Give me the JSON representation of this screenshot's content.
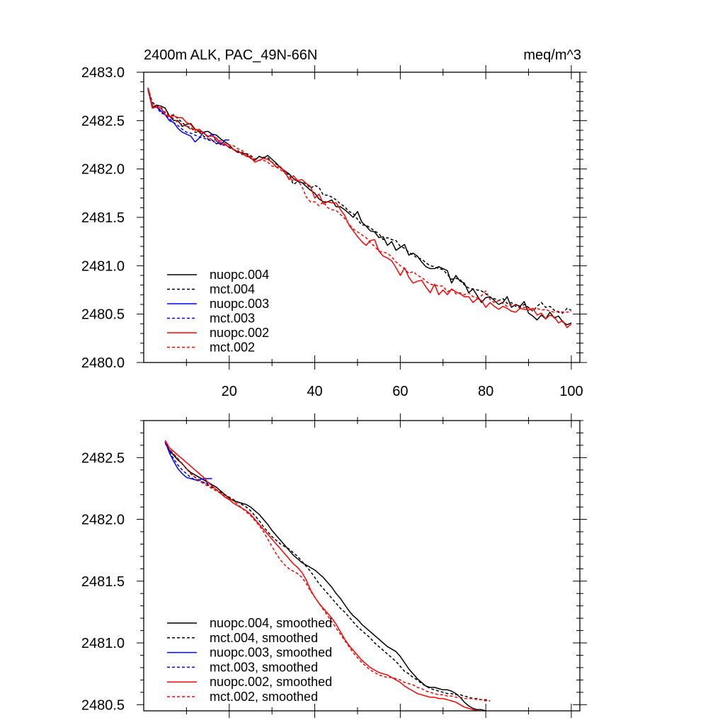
{
  "chart_data": [
    {
      "type": "line",
      "title": "2400m ALK, PAC_49N-66N",
      "units": "meq/m^3",
      "xlim": [
        0,
        102
      ],
      "ylim": [
        2480.0,
        2483.0
      ],
      "xticks": [
        20,
        40,
        60,
        80,
        100
      ],
      "yticks": [
        2480.0,
        2480.5,
        2481.0,
        2481.5,
        2482.0,
        2482.5,
        2483.0
      ],
      "ytick_labels": [
        "2480.0",
        "2480.5",
        "2481.0",
        "2481.5",
        "2482.0",
        "2482.5",
        "2483.0"
      ],
      "xtick_labels": [
        "20",
        "40",
        "60",
        "80",
        "100"
      ],
      "legend_position": "bottom-left",
      "series": [
        {
          "name": "nuopc.004",
          "color": "#000000",
          "dash": "solid",
          "x_start": 1,
          "values": [
            2482.84,
            2482.64,
            2482.66,
            2482.65,
            2482.63,
            2482.55,
            2482.5,
            2482.5,
            2482.44,
            2482.46,
            2482.47,
            2482.41,
            2482.39,
            2482.38,
            2482.39,
            2482.36,
            2482.35,
            2482.31,
            2482.28,
            2482.25,
            2482.2,
            2482.17,
            2482.17,
            2482.15,
            2482.11,
            2482.09,
            2482.13,
            2482.11,
            2482.14,
            2482.1,
            2482.06,
            2482.01,
            2481.98,
            2481.95,
            2481.9,
            2481.87,
            2481.86,
            2481.82,
            2481.78,
            2481.75,
            2481.69,
            2481.66,
            2481.66,
            2481.68,
            2481.61,
            2481.61,
            2481.58,
            2481.54,
            2481.5,
            2481.56,
            2481.45,
            2481.41,
            2481.36,
            2481.35,
            2481.29,
            2481.3,
            2481.21,
            2481.25,
            2481.16,
            2481.19,
            2481.22,
            2481.11,
            2481.13,
            2481.1,
            2481.04,
            2480.99,
            2480.97,
            2480.97,
            2480.99,
            2480.97,
            2480.95,
            2480.82,
            2480.9,
            2480.84,
            2480.82,
            2480.72,
            2480.76,
            2480.69,
            2480.62,
            2480.67,
            2480.68,
            2480.64,
            2480.6,
            2480.62,
            2480.68,
            2480.57,
            2480.6,
            2480.58,
            2480.63,
            2480.51,
            2480.48,
            2480.44,
            2480.49,
            2480.45,
            2480.52,
            2480.46,
            2480.48,
            2480.42,
            2480.39,
            2480.41
          ]
        },
        {
          "name": "mct.004",
          "color": "#000000",
          "dash": "dashed",
          "x_start": 1,
          "values": [
            2482.84,
            2482.69,
            2482.66,
            2482.6,
            2482.59,
            2482.55,
            2482.56,
            2482.52,
            2482.48,
            2482.44,
            2482.43,
            2482.38,
            2482.38,
            2482.34,
            2482.31,
            2482.3,
            2482.26,
            2482.27,
            2482.26,
            2482.22,
            2482.2,
            2482.19,
            2482.15,
            2482.16,
            2482.14,
            2482.1,
            2482.13,
            2482.12,
            2482.12,
            2482.07,
            2482.05,
            2482.02,
            2481.96,
            2481.94,
            2481.84,
            2481.87,
            2481.86,
            2481.85,
            2481.8,
            2481.83,
            2481.81,
            2481.73,
            2481.73,
            2481.71,
            2481.68,
            2481.64,
            2481.61,
            2481.56,
            2481.54,
            2481.48,
            2481.42,
            2481.42,
            2481.39,
            2481.36,
            2481.33,
            2481.27,
            2481.29,
            2481.27,
            2481.26,
            2481.2,
            2481.18,
            2481.14,
            2481.11,
            2481.08,
            2481.07,
            2481.03,
            2481.0,
            2480.99,
            2480.97,
            2480.96,
            2480.91,
            2480.86,
            2480.87,
            2480.86,
            2480.8,
            2480.77,
            2480.76,
            2480.75,
            2480.74,
            2480.71,
            2480.67,
            2480.66,
            2480.64,
            2480.66,
            2480.61,
            2480.62,
            2480.58,
            2480.57,
            2480.6,
            2480.57,
            2480.53,
            2480.58,
            2480.62,
            2480.57,
            2480.58,
            2480.54,
            2480.52,
            2480.51,
            2480.56,
            2480.54
          ]
        },
        {
          "name": "nuopc.003",
          "color": "#0000ff",
          "dash": "solid",
          "x_start": 1,
          "values": [
            2482.82,
            2482.63,
            2482.64,
            2482.6,
            2482.56,
            2482.5,
            2482.48,
            2482.42,
            2482.38,
            2482.36,
            2482.34,
            2482.28,
            2482.32,
            2482.38,
            2482.33,
            2482.36,
            2482.29,
            2482.25,
            2482.3,
            2482.3
          ]
        },
        {
          "name": "mct.003",
          "color": "#0000ff",
          "dash": "dashed",
          "x_start": 1,
          "values": [
            2482.83,
            2482.66,
            2482.64,
            2482.58,
            2482.56,
            2482.52,
            2482.48,
            2482.45,
            2482.41,
            2482.38,
            2482.37,
            2482.35,
            2482.33,
            2482.32,
            2482.3,
            2482.29,
            2482.27,
            2482.26,
            2482.24,
            2482.23
          ]
        },
        {
          "name": "nuopc.002",
          "color": "#ff0000",
          "dash": "solid",
          "x_start": 1,
          "values": [
            2482.84,
            2482.63,
            2482.64,
            2482.63,
            2482.56,
            2482.54,
            2482.55,
            2482.53,
            2482.53,
            2482.48,
            2482.46,
            2482.4,
            2482.41,
            2482.37,
            2482.34,
            2482.34,
            2482.32,
            2482.26,
            2482.25,
            2482.23,
            2482.2,
            2482.18,
            2482.16,
            2482.13,
            2482.12,
            2482.07,
            2482.09,
            2482.11,
            2482.1,
            2482.07,
            2482.02,
            2482.02,
            2481.97,
            2481.89,
            2481.93,
            2481.88,
            2481.89,
            2481.85,
            2481.82,
            2481.7,
            2481.74,
            2481.64,
            2481.66,
            2481.65,
            2481.65,
            2481.58,
            2481.52,
            2481.42,
            2481.36,
            2481.3,
            2481.25,
            2481.21,
            2481.26,
            2481.27,
            2481.15,
            2481.1,
            2481.08,
            2481.05,
            2480.98,
            2480.9,
            2480.98,
            2480.88,
            2480.82,
            2480.84,
            2480.85,
            2480.78,
            2480.72,
            2480.81,
            2480.7,
            2480.75,
            2480.7,
            2480.76,
            2480.73,
            2480.71,
            2480.68,
            2480.68,
            2480.62,
            2480.66,
            2480.64,
            2480.57,
            2480.62,
            2480.58,
            2480.55,
            2480.58,
            2480.56,
            2480.53,
            2480.52,
            2480.56,
            2480.55,
            2480.54,
            2480.56,
            2480.49,
            2480.51,
            2480.45,
            2480.49,
            2480.47,
            2480.41,
            2480.43,
            2480.36,
            2480.4
          ]
        },
        {
          "name": "mct.002",
          "color": "#ff0000",
          "dash": "dashed",
          "x_start": 1,
          "values": [
            2482.83,
            2482.68,
            2482.65,
            2482.64,
            2482.58,
            2482.55,
            2482.52,
            2482.48,
            2482.46,
            2482.44,
            2482.41,
            2482.41,
            2482.38,
            2482.37,
            2482.33,
            2482.3,
            2482.3,
            2482.29,
            2482.26,
            2482.25,
            2482.24,
            2482.21,
            2482.19,
            2482.15,
            2482.13,
            2482.1,
            2482.09,
            2482.09,
            2482.07,
            2482.03,
            2482.02,
            2481.99,
            2481.96,
            2481.9,
            2481.88,
            2481.88,
            2481.82,
            2481.71,
            2481.66,
            2481.66,
            2481.62,
            2481.66,
            2481.6,
            2481.58,
            2481.57,
            2481.53,
            2481.49,
            2481.43,
            2481.38,
            2481.35,
            2481.32,
            2481.29,
            2481.24,
            2481.2,
            2481.15,
            2481.14,
            2481.13,
            2481.09,
            2481.04,
            2481.0,
            2480.97,
            2480.92,
            2480.94,
            2480.9,
            2480.88,
            2480.84,
            2480.81,
            2480.8,
            2480.79,
            2480.79,
            2480.73,
            2480.76,
            2480.71,
            2480.72,
            2480.7,
            2480.72,
            2480.68,
            2480.67,
            2480.69,
            2480.74,
            2480.65,
            2480.62,
            2480.64,
            2480.61,
            2480.58,
            2480.6,
            2480.59,
            2480.56,
            2480.57,
            2480.56,
            2480.55,
            2480.56,
            2480.54,
            2480.55,
            2480.53,
            2480.52,
            2480.53,
            2480.52,
            2480.52,
            2480.53
          ]
        }
      ]
    },
    {
      "type": "line",
      "title": "",
      "xlim": [
        0,
        102
      ],
      "ylim": [
        2480.45,
        2482.8
      ],
      "yticks": [
        2480.5,
        2481.0,
        2481.5,
        2482.0,
        2482.5
      ],
      "ytick_labels": [
        "2480.5",
        "2481.0",
        "2481.5",
        "2482.0",
        "2482.5"
      ],
      "xticks": [
        20,
        40,
        60,
        80,
        100
      ],
      "legend_position": "bottom-left",
      "series": [
        {
          "name": "nuopc.004, smoothed",
          "color": "#000000",
          "dash": "solid",
          "x_start": 5,
          "values": [
            2482.63,
            2482.56,
            2482.52,
            2482.48,
            2482.45,
            2482.41,
            2482.38,
            2482.36,
            2482.34,
            2482.32,
            2482.3,
            2482.28,
            2482.26,
            2482.23,
            2482.2,
            2482.17,
            2482.15,
            2482.14,
            2482.13,
            2482.12,
            2482.1,
            2482.07,
            2482.04,
            2482.0,
            2481.96,
            2481.91,
            2481.87,
            2481.83,
            2481.79,
            2481.75,
            2481.71,
            2481.68,
            2481.65,
            2481.63,
            2481.61,
            2481.59,
            2481.56,
            2481.53,
            2481.49,
            2481.45,
            2481.4,
            2481.36,
            2481.31,
            2481.26,
            2481.22,
            2481.19,
            2481.15,
            2481.12,
            2481.09,
            2481.06,
            2481.03,
            2481.0,
            2480.97,
            2480.95,
            2480.93,
            2480.89,
            2480.84,
            2480.79,
            2480.75,
            2480.71,
            2480.68,
            2480.65,
            2480.64,
            2480.64,
            2480.63,
            2480.62,
            2480.62,
            2480.61,
            2480.59,
            2480.56,
            2480.52,
            2480.49,
            2480.47,
            2480.46,
            2480.46,
            2480.45,
            2480.44
          ]
        },
        {
          "name": "mct.004, smoothed",
          "color": "#000000",
          "dash": "dashed",
          "x_start": 5,
          "values": [
            2482.62,
            2482.56,
            2482.53,
            2482.49,
            2482.45,
            2482.41,
            2482.37,
            2482.34,
            2482.32,
            2482.3,
            2482.28,
            2482.26,
            2482.24,
            2482.22,
            2482.2,
            2482.18,
            2482.16,
            2482.14,
            2482.12,
            2482.1,
            2482.07,
            2482.03,
            2481.99,
            2481.94,
            2481.9,
            2481.86,
            2481.83,
            2481.8,
            2481.78,
            2481.76,
            2481.73,
            2481.7,
            2481.66,
            2481.62,
            2481.58,
            2481.53,
            2481.48,
            2481.44,
            2481.4,
            2481.36,
            2481.32,
            2481.28,
            2481.25,
            2481.21,
            2481.17,
            2481.13,
            2481.1,
            2481.07,
            2481.04,
            2481.0,
            2480.97,
            2480.94,
            2480.91,
            2480.88,
            2480.85,
            2480.81,
            2480.77,
            2480.75,
            2480.72,
            2480.7,
            2480.67,
            2480.65,
            2480.63,
            2480.62,
            2480.61,
            2480.6,
            2480.59,
            2480.59,
            2480.58,
            2480.58,
            2480.57,
            2480.56,
            2480.55,
            2480.55,
            2480.54,
            2480.54,
            2480.53
          ]
        },
        {
          "name": "nuopc.003, smoothed",
          "color": "#0000ff",
          "dash": "solid",
          "x_start": 5,
          "values": [
            2482.63,
            2482.54,
            2482.47,
            2482.41,
            2482.37,
            2482.34,
            2482.33,
            2482.32,
            2482.32,
            2482.33,
            2482.33,
            2482.33
          ]
        },
        {
          "name": "mct.003, smoothed",
          "color": "#0000ff",
          "dash": "dashed",
          "x_start": 5,
          "values": [
            2482.62,
            2482.55,
            2482.49,
            2482.44,
            2482.4,
            2482.37,
            2482.34,
            2482.32,
            2482.31,
            2482.3,
            2482.29,
            2482.28
          ]
        },
        {
          "name": "nuopc.002, smoothed",
          "color": "#ff0000",
          "dash": "solid",
          "x_start": 5,
          "values": [
            2482.64,
            2482.58,
            2482.55,
            2482.52,
            2482.49,
            2482.46,
            2482.43,
            2482.4,
            2482.37,
            2482.34,
            2482.3,
            2482.27,
            2482.24,
            2482.21,
            2482.18,
            2482.16,
            2482.13,
            2482.11,
            2482.09,
            2482.07,
            2482.04,
            2482.0,
            2481.96,
            2481.92,
            2481.88,
            2481.84,
            2481.8,
            2481.76,
            2481.72,
            2481.68,
            2481.64,
            2481.61,
            2481.57,
            2481.51,
            2481.43,
            2481.37,
            2481.32,
            2481.28,
            2481.24,
            2481.2,
            2481.15,
            2481.09,
            2481.03,
            2480.98,
            2480.94,
            2480.9,
            2480.86,
            2480.83,
            2480.8,
            2480.78,
            2480.76,
            2480.75,
            2480.74,
            2480.72,
            2480.7,
            2480.68,
            2480.65,
            2480.63,
            2480.61,
            2480.59,
            2480.58,
            2480.57,
            2480.56,
            2480.56,
            2480.55,
            2480.55,
            2480.54,
            2480.53,
            2480.52,
            2480.5,
            2480.48,
            2480.47,
            2480.46,
            2480.45,
            2480.44,
            2480.44,
            2480.44
          ]
        },
        {
          "name": "mct.002, smoothed",
          "color": "#ff0000",
          "dash": "dashed",
          "x_start": 5,
          "values": [
            2482.63,
            2482.57,
            2482.53,
            2482.49,
            2482.45,
            2482.41,
            2482.37,
            2482.34,
            2482.31,
            2482.29,
            2482.27,
            2482.25,
            2482.23,
            2482.21,
            2482.19,
            2482.17,
            2482.15,
            2482.12,
            2482.09,
            2482.06,
            2482.03,
            2481.99,
            2481.95,
            2481.9,
            2481.84,
            2481.78,
            2481.72,
            2481.67,
            2481.63,
            2481.6,
            2481.58,
            2481.56,
            2481.53,
            2481.48,
            2481.42,
            2481.37,
            2481.32,
            2481.27,
            2481.22,
            2481.17,
            2481.12,
            2481.07,
            2481.02,
            2480.97,
            2480.92,
            2480.88,
            2480.84,
            2480.81,
            2480.78,
            2480.76,
            2480.74,
            2480.73,
            2480.72,
            2480.72,
            2480.71,
            2480.7,
            2480.68,
            2480.67,
            2480.66,
            2480.64,
            2480.63,
            2480.61,
            2480.6,
            2480.59,
            2480.58,
            2480.58,
            2480.57,
            2480.57,
            2480.56,
            2480.56,
            2480.55,
            2480.55,
            2480.55,
            2480.54,
            2480.54,
            2480.53,
            2480.53
          ]
        }
      ]
    }
  ]
}
